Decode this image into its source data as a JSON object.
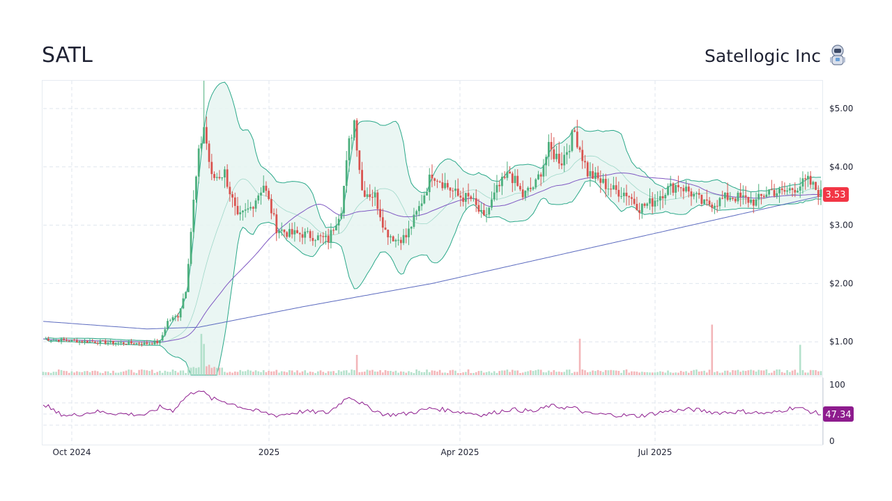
{
  "header": {
    "ticker": "SATL",
    "company_name": "Satellogic Inc",
    "logo_icon": "astronaut-robot-icon"
  },
  "colors": {
    "up": "#4caf7d",
    "down": "#d9534f",
    "band_line": "#2aa889",
    "band_fill": "#e6f4f1",
    "sma_long": "#5b6abf",
    "sma_mid": "#7e57c2",
    "rsi_line": "#8e1c8e",
    "price_tag": "#f23645",
    "rsi_tag": "#8e1c8e",
    "grid": "#dfe6ee"
  },
  "last_price_label": "3.53",
  "rsi_value_label": "47.34",
  "chart_data": {
    "type": "candlestick",
    "x_labels": [
      "Oct 2024",
      "2025",
      "Apr 2025",
      "Jul 2025"
    ],
    "y_ticks": [
      "$1.00",
      "$2.00",
      "$3.00",
      "$4.00",
      "$5.00"
    ],
    "rsi_ticks": [
      "0",
      "100"
    ],
    "ylim": [
      0.4,
      5.5
    ],
    "y_scale": "linear",
    "price_path": [
      [
        0,
        1.05
      ],
      [
        10,
        1.02
      ],
      [
        20,
        1.0
      ],
      [
        30,
        0.98
      ],
      [
        40,
        0.97
      ],
      [
        45,
        1.0
      ],
      [
        48,
        1.35
      ],
      [
        52,
        1.45
      ],
      [
        55,
        1.9
      ],
      [
        58,
        3.4
      ],
      [
        60,
        4.2
      ],
      [
        62,
        4.7
      ],
      [
        65,
        3.8
      ],
      [
        70,
        3.9
      ],
      [
        75,
        3.1
      ],
      [
        80,
        3.3
      ],
      [
        85,
        3.7
      ],
      [
        90,
        2.95
      ],
      [
        95,
        2.85
      ],
      [
        100,
        2.85
      ],
      [
        105,
        2.8
      ],
      [
        110,
        2.75
      ],
      [
        115,
        3.3
      ],
      [
        118,
        4.4
      ],
      [
        120,
        4.8
      ],
      [
        123,
        3.6
      ],
      [
        128,
        3.5
      ],
      [
        132,
        2.9
      ],
      [
        136,
        2.75
      ],
      [
        140,
        2.8
      ],
      [
        145,
        3.3
      ],
      [
        150,
        3.9
      ],
      [
        155,
        3.7
      ],
      [
        160,
        3.5
      ],
      [
        165,
        3.45
      ],
      [
        170,
        3.1
      ],
      [
        175,
        3.6
      ],
      [
        180,
        3.9
      ],
      [
        185,
        3.5
      ],
      [
        190,
        3.7
      ],
      [
        195,
        4.3
      ],
      [
        200,
        4.1
      ],
      [
        205,
        4.6
      ],
      [
        210,
        3.9
      ],
      [
        215,
        3.75
      ],
      [
        220,
        3.6
      ],
      [
        225,
        3.55
      ],
      [
        230,
        3.3
      ],
      [
        235,
        3.4
      ],
      [
        240,
        3.6
      ],
      [
        245,
        3.7
      ],
      [
        250,
        3.55
      ],
      [
        255,
        3.35
      ],
      [
        260,
        3.4
      ],
      [
        265,
        3.5
      ],
      [
        270,
        3.45
      ],
      [
        275,
        3.4
      ],
      [
        280,
        3.6
      ],
      [
        285,
        3.55
      ],
      [
        290,
        3.65
      ],
      [
        295,
        3.75
      ],
      [
        300,
        3.53
      ]
    ],
    "sma_long": [
      [
        0,
        1.35
      ],
      [
        40,
        1.22
      ],
      [
        60,
        1.25
      ],
      [
        100,
        1.6
      ],
      [
        150,
        2.0
      ],
      [
        200,
        2.5
      ],
      [
        250,
        3.0
      ],
      [
        300,
        3.5
      ]
    ],
    "volume_spikes": [
      [
        61,
        0.9
      ],
      [
        62,
        0.65
      ],
      [
        121,
        0.5
      ],
      [
        207,
        0.9
      ],
      [
        258,
        1.25
      ],
      [
        292,
        0.75
      ]
    ],
    "rsi_path": [
      [
        0,
        67
      ],
      [
        5,
        50
      ],
      [
        10,
        44
      ],
      [
        20,
        52
      ],
      [
        30,
        48
      ],
      [
        40,
        46
      ],
      [
        45,
        60
      ],
      [
        50,
        54
      ],
      [
        55,
        78
      ],
      [
        60,
        92
      ],
      [
        65,
        75
      ],
      [
        70,
        70
      ],
      [
        80,
        55
      ],
      [
        90,
        45
      ],
      [
        100,
        52
      ],
      [
        110,
        50
      ],
      [
        118,
        80
      ],
      [
        125,
        60
      ],
      [
        132,
        46
      ],
      [
        140,
        48
      ],
      [
        150,
        58
      ],
      [
        160,
        52
      ],
      [
        170,
        46
      ],
      [
        180,
        56
      ],
      [
        190,
        52
      ],
      [
        195,
        62
      ],
      [
        205,
        58
      ],
      [
        210,
        48
      ],
      [
        220,
        46
      ],
      [
        230,
        44
      ],
      [
        240,
        52
      ],
      [
        250,
        56
      ],
      [
        260,
        50
      ],
      [
        270,
        52
      ],
      [
        280,
        48
      ],
      [
        290,
        60
      ],
      [
        300,
        47
      ]
    ]
  }
}
